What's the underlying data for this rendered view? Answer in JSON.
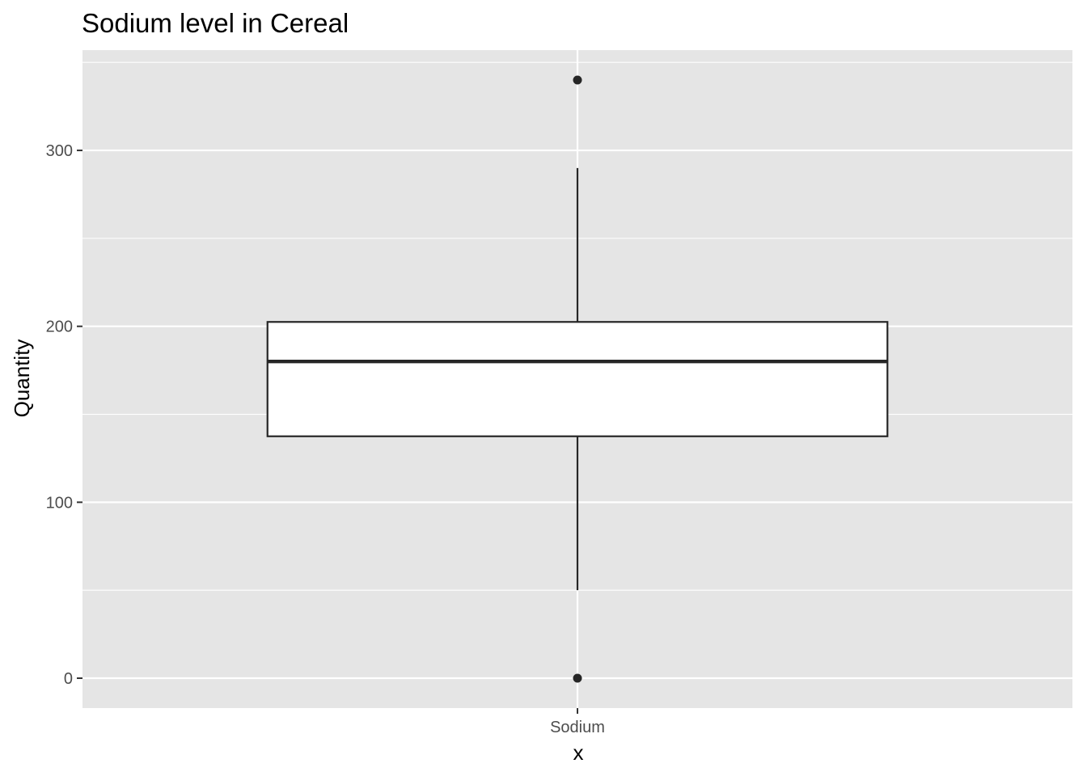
{
  "chart_data": {
    "type": "boxplot",
    "title": "Sodium level in Cereal",
    "xlabel": "x",
    "ylabel": "Quantity",
    "categories": [
      "Sodium"
    ],
    "boxes": [
      {
        "category": "Sodium",
        "whisker_low": 50,
        "q1": 137.5,
        "median": 180,
        "q3": 202.5,
        "whisker_high": 290,
        "outliers": [
          0,
          340
        ]
      }
    ],
    "y_ticks": [
      0,
      100,
      200,
      300
    ],
    "y_tick_labels": [
      "0",
      "100",
      "200",
      "300"
    ],
    "ylim": [
      -17,
      357
    ],
    "grid": true,
    "legend": "none",
    "colors": {
      "panel": "#e5e5e5",
      "grid": "#ffffff",
      "box_fill": "#ffffff",
      "stroke": "#262626",
      "tick_text": "#4d4d4d",
      "tick_mark": "#333333"
    }
  }
}
